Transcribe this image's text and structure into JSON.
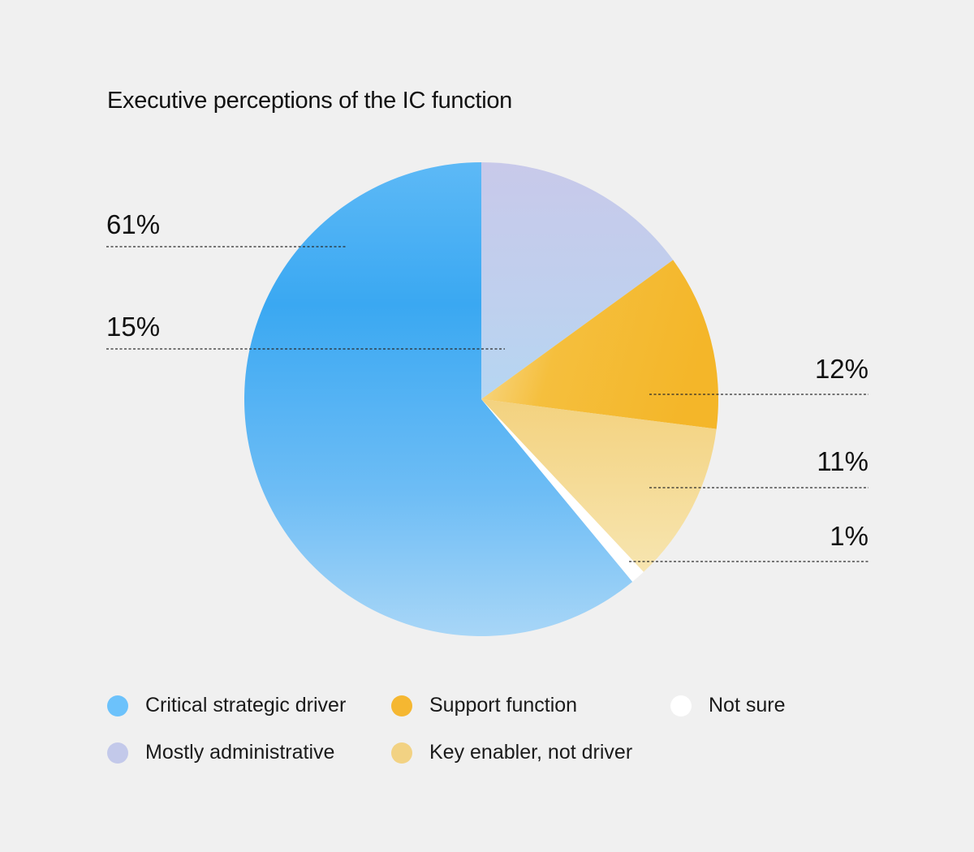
{
  "chart_data": {
    "type": "pie",
    "title": "Executive perceptions of the IC function",
    "slices": [
      {
        "name": "Mostly administrative",
        "value": 15,
        "label": "15%",
        "color": "#c3c9ea"
      },
      {
        "name": "Support function",
        "value": 12,
        "label": "12%",
        "color": "#f5b731"
      },
      {
        "name": "Key enabler, not driver",
        "value": 11,
        "label": "11%",
        "color": "#f2d283"
      },
      {
        "name": "Not sure",
        "value": 1,
        "label": "1%",
        "color": "#ffffff"
      },
      {
        "name": "Critical strategic driver",
        "value": 61,
        "label": "61%",
        "color": "#41acf2"
      }
    ],
    "legend": [
      {
        "name": "Critical strategic driver",
        "color": "#6cc2fb"
      },
      {
        "name": "Support function",
        "color": "#f5b731"
      },
      {
        "name": "Not sure",
        "color": "#ffffff"
      },
      {
        "name": "Mostly administrative",
        "color": "#c3c9ea"
      },
      {
        "name": "Key enabler, not driver",
        "color": "#f2d283"
      }
    ],
    "legend_placement": "bottom"
  }
}
